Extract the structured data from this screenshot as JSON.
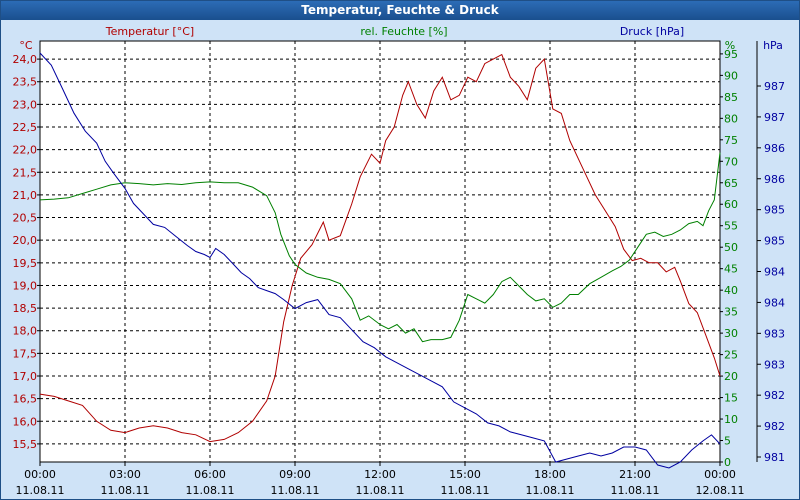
{
  "window": {
    "title": "Temperatur, Feuchte & Druck"
  },
  "chart_data": {
    "type": "line",
    "title": "Temperatur, Feuchte & Druck",
    "colors": {
      "temperature": "#b00000",
      "humidity": "#008000",
      "pressure": "#0000a0",
      "grid": "#000000"
    },
    "x_ticks": [
      {
        "time": "00:00",
        "date": "11.08.11"
      },
      {
        "time": "03:00",
        "date": "11.08.11"
      },
      {
        "time": "06:00",
        "date": "11.08.11"
      },
      {
        "time": "09:00",
        "date": "11.08.11"
      },
      {
        "time": "12:00",
        "date": "11.08.11"
      },
      {
        "time": "15:00",
        "date": "11.08.11"
      },
      {
        "time": "18:00",
        "date": "11.08.11"
      },
      {
        "time": "21:00",
        "date": "11.08.11"
      },
      {
        "time": "00:00",
        "date": "12.08.11"
      }
    ],
    "x_range_hours": [
      0,
      24
    ],
    "axes": {
      "temperature": {
        "label": "Temperatur [°C]",
        "unit": "°C",
        "range": [
          15.1,
          24.4
        ],
        "ticks": [
          "24,0",
          "23,5",
          "23,0",
          "22,5",
          "22,0",
          "21,5",
          "21,0",
          "20,5",
          "20,0",
          "19,5",
          "19,0",
          "18,5",
          "18,0",
          "17,5",
          "17,0",
          "16,5",
          "16,0",
          "15,5"
        ]
      },
      "humidity": {
        "label": "rel. Feuchte [%]",
        "unit": "%",
        "range": [
          0,
          98
        ],
        "ticks": [
          "95",
          "90",
          "85",
          "80",
          "75",
          "70",
          "65",
          "60",
          "55",
          "50",
          "45",
          "40",
          "35",
          "30",
          "25",
          "20",
          "15",
          "10",
          "5",
          "0"
        ]
      },
      "pressure": {
        "label": "Druck [hPa]",
        "unit": "hPa",
        "range": [
          981,
          988
        ],
        "ticks": [
          "987",
          "987",
          "986",
          "986",
          "985",
          "985",
          "984",
          "984",
          "983",
          "983",
          "982",
          "982",
          "981"
        ]
      }
    },
    "series": [
      {
        "name": "Temperatur [°C]",
        "axis": "temperature",
        "points": [
          [
            0,
            16.6
          ],
          [
            0.5,
            16.55
          ],
          [
            1,
            16.45
          ],
          [
            1.5,
            16.35
          ],
          [
            2,
            16.0
          ],
          [
            2.5,
            15.8
          ],
          [
            3,
            15.75
          ],
          [
            3.5,
            15.85
          ],
          [
            4,
            15.9
          ],
          [
            4.5,
            15.85
          ],
          [
            5,
            15.75
          ],
          [
            5.5,
            15.7
          ],
          [
            6,
            15.55
          ],
          [
            6.5,
            15.6
          ],
          [
            7,
            15.75
          ],
          [
            7.5,
            16.0
          ],
          [
            8,
            16.45
          ],
          [
            8.3,
            17.0
          ],
          [
            8.6,
            18.2
          ],
          [
            8.9,
            19.0
          ],
          [
            9.2,
            19.6
          ],
          [
            9.6,
            19.9
          ],
          [
            10,
            20.4
          ],
          [
            10.2,
            20.0
          ],
          [
            10.6,
            20.1
          ],
          [
            11,
            20.8
          ],
          [
            11.3,
            21.4
          ],
          [
            11.7,
            21.9
          ],
          [
            12,
            21.7
          ],
          [
            12.2,
            22.2
          ],
          [
            12.5,
            22.5
          ],
          [
            12.8,
            23.2
          ],
          [
            13,
            23.5
          ],
          [
            13.3,
            23.0
          ],
          [
            13.6,
            22.7
          ],
          [
            13.9,
            23.3
          ],
          [
            14.2,
            23.6
          ],
          [
            14.5,
            23.1
          ],
          [
            14.8,
            23.2
          ],
          [
            15.1,
            23.6
          ],
          [
            15.4,
            23.5
          ],
          [
            15.7,
            23.9
          ],
          [
            16,
            24.0
          ],
          [
            16.3,
            24.1
          ],
          [
            16.6,
            23.6
          ],
          [
            16.9,
            23.4
          ],
          [
            17.2,
            23.1
          ],
          [
            17.5,
            23.8
          ],
          [
            17.8,
            24.0
          ],
          [
            18.1,
            22.9
          ],
          [
            18.4,
            22.8
          ],
          [
            18.7,
            22.2
          ],
          [
            19,
            21.8
          ],
          [
            19.3,
            21.4
          ],
          [
            19.6,
            21.0
          ],
          [
            20,
            20.6
          ],
          [
            20.3,
            20.3
          ],
          [
            20.6,
            19.8
          ],
          [
            20.9,
            19.55
          ],
          [
            21.2,
            19.6
          ],
          [
            21.5,
            19.5
          ],
          [
            21.8,
            19.5
          ],
          [
            22.1,
            19.3
          ],
          [
            22.4,
            19.4
          ],
          [
            22.6,
            19.1
          ],
          [
            22.9,
            18.6
          ],
          [
            23.2,
            18.4
          ],
          [
            23.5,
            17.9
          ],
          [
            23.8,
            17.4
          ],
          [
            24,
            17.0
          ]
        ]
      },
      {
        "name": "rel. Feuchte [%]",
        "axis": "humidity",
        "points": [
          [
            0,
            61
          ],
          [
            0.5,
            61.2
          ],
          [
            1,
            61.5
          ],
          [
            1.5,
            62.5
          ],
          [
            2,
            63.5
          ],
          [
            2.5,
            64.5
          ],
          [
            3,
            65
          ],
          [
            3.5,
            64.8
          ],
          [
            4,
            64.5
          ],
          [
            4.5,
            64.8
          ],
          [
            5,
            64.6
          ],
          [
            5.5,
            65
          ],
          [
            6,
            65.2
          ],
          [
            6.5,
            65
          ],
          [
            7,
            65
          ],
          [
            7.5,
            64
          ],
          [
            8,
            62
          ],
          [
            8.3,
            58
          ],
          [
            8.5,
            53
          ],
          [
            8.8,
            48
          ],
          [
            9,
            46
          ],
          [
            9.4,
            44
          ],
          [
            9.8,
            43
          ],
          [
            10.2,
            42.5
          ],
          [
            10.6,
            41.5
          ],
          [
            11,
            38
          ],
          [
            11.3,
            33
          ],
          [
            11.6,
            34
          ],
          [
            12,
            32
          ],
          [
            12.3,
            31
          ],
          [
            12.6,
            32
          ],
          [
            12.9,
            30
          ],
          [
            13.2,
            31
          ],
          [
            13.5,
            28
          ],
          [
            13.8,
            28.5
          ],
          [
            14.2,
            28.5
          ],
          [
            14.5,
            29
          ],
          [
            14.8,
            33
          ],
          [
            15.1,
            39
          ],
          [
            15.4,
            38
          ],
          [
            15.7,
            37
          ],
          [
            16,
            39
          ],
          [
            16.3,
            42
          ],
          [
            16.6,
            43
          ],
          [
            16.9,
            41
          ],
          [
            17.2,
            39
          ],
          [
            17.5,
            37.5
          ],
          [
            17.8,
            38
          ],
          [
            18.1,
            36
          ],
          [
            18.4,
            37
          ],
          [
            18.7,
            39
          ],
          [
            19,
            39
          ],
          [
            19.4,
            41.5
          ],
          [
            19.8,
            43
          ],
          [
            20.2,
            44.5
          ],
          [
            20.5,
            45.5
          ],
          [
            20.8,
            47
          ],
          [
            21.1,
            50
          ],
          [
            21.4,
            53
          ],
          [
            21.7,
            53.5
          ],
          [
            22,
            52.5
          ],
          [
            22.3,
            53
          ],
          [
            22.6,
            54
          ],
          [
            22.9,
            55.5
          ],
          [
            23.2,
            56
          ],
          [
            23.4,
            55
          ],
          [
            23.6,
            58.5
          ],
          [
            23.8,
            61
          ],
          [
            24,
            72
          ]
        ]
      },
      {
        "name": "Druck [hPa]",
        "axis": "pressure",
        "points": [
          [
            0,
            987.8
          ],
          [
            0.4,
            987.6
          ],
          [
            0.8,
            987.2
          ],
          [
            1.2,
            986.8
          ],
          [
            1.6,
            986.5
          ],
          [
            2,
            986.3
          ],
          [
            2.3,
            986.0
          ],
          [
            2.6,
            985.8
          ],
          [
            3,
            985.55
          ],
          [
            3.3,
            985.3
          ],
          [
            3.6,
            985.15
          ],
          [
            4,
            984.95
          ],
          [
            4.4,
            984.9
          ],
          [
            4.8,
            984.75
          ],
          [
            5.2,
            984.6
          ],
          [
            5.5,
            984.5
          ],
          [
            5.8,
            984.45
          ],
          [
            6,
            984.4
          ],
          [
            6.2,
            984.55
          ],
          [
            6.5,
            984.45
          ],
          [
            6.8,
            984.3
          ],
          [
            7.1,
            984.15
          ],
          [
            7.4,
            984.05
          ],
          [
            7.7,
            983.9
          ],
          [
            8,
            983.85
          ],
          [
            8.3,
            983.8
          ],
          [
            8.6,
            983.7
          ],
          [
            9,
            983.55
          ],
          [
            9.4,
            983.65
          ],
          [
            9.8,
            983.7
          ],
          [
            10.2,
            983.45
          ],
          [
            10.6,
            983.4
          ],
          [
            11,
            983.2
          ],
          [
            11.4,
            983.0
          ],
          [
            11.8,
            982.9
          ],
          [
            12.2,
            982.75
          ],
          [
            12.6,
            982.65
          ],
          [
            13,
            982.55
          ],
          [
            13.4,
            982.45
          ],
          [
            13.8,
            982.35
          ],
          [
            14.2,
            982.25
          ],
          [
            14.6,
            982.0
          ],
          [
            15,
            981.9
          ],
          [
            15.4,
            981.8
          ],
          [
            15.8,
            981.65
          ],
          [
            16.2,
            981.6
          ],
          [
            16.6,
            981.5
          ],
          [
            17,
            981.45
          ],
          [
            17.4,
            981.4
          ],
          [
            17.8,
            981.35
          ],
          [
            18.2,
            981.0
          ],
          [
            18.6,
            981.05
          ],
          [
            19,
            981.1
          ],
          [
            19.4,
            981.15
          ],
          [
            19.8,
            981.1
          ],
          [
            20.2,
            981.15
          ],
          [
            20.6,
            981.25
          ],
          [
            21,
            981.25
          ],
          [
            21.4,
            981.2
          ],
          [
            21.8,
            980.95
          ],
          [
            22.2,
            980.9
          ],
          [
            22.6,
            981.0
          ],
          [
            23,
            981.2
          ],
          [
            23.4,
            981.35
          ],
          [
            23.7,
            981.45
          ],
          [
            24,
            981.3
          ]
        ]
      }
    ]
  }
}
